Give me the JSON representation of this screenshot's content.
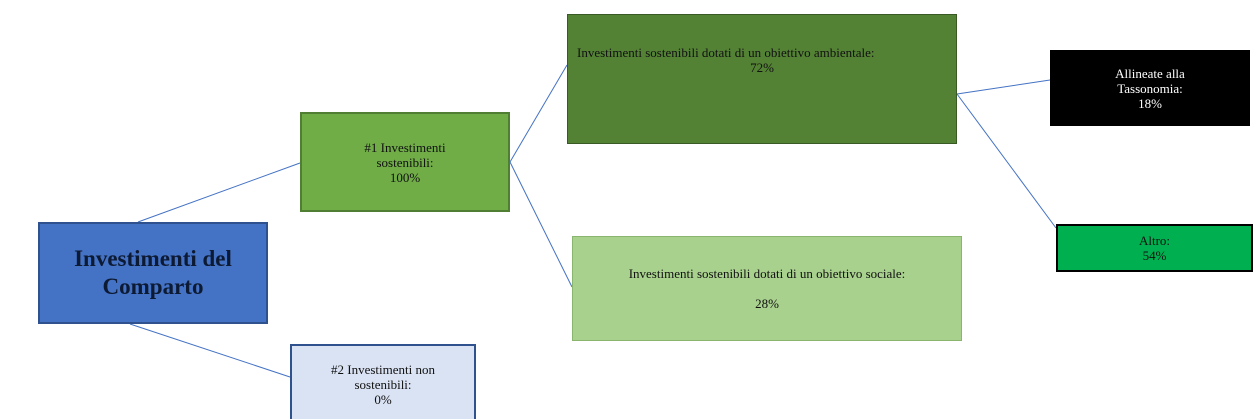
{
  "nodes": [
    {
      "label": "Investimenti del Comparto"
    },
    {
      "label": "#1 Investimenti sostenibili:",
      "value": "100%"
    },
    {
      "label": "#2 Investimenti non sostenibili:",
      "value": "0%"
    },
    {
      "label": "Investimenti sostenibili dotati di un obiettivo ambientale:",
      "value": "72%"
    },
    {
      "label": "Investimenti sostenibili dotati di un obiettivo sociale:",
      "value": "28%"
    },
    {
      "label": "Allineate alla Tassonomia:",
      "value": "18%"
    },
    {
      "label": "Altro:",
      "value": "54%"
    }
  ]
}
